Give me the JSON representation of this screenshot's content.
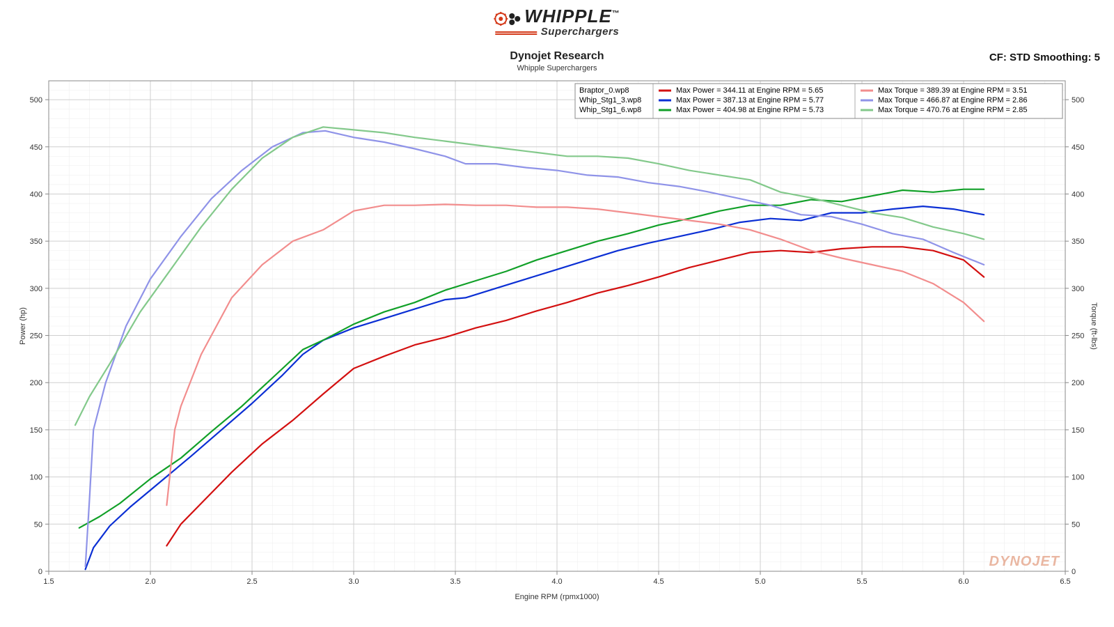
{
  "logo": {
    "brand": "WHIPPLE",
    "subtitle": "Superchargers",
    "tm": "™"
  },
  "header": {
    "title_main": "Dynojet Research",
    "title_sub": "Whipple Superchargers",
    "cf_label": "CF: STD Smoothing: 5"
  },
  "chart": {
    "type": "line",
    "xlabel": "Engine RPM  (rpmx1000)",
    "ylabel_left": "Power (hp)",
    "ylabel_right": "Torque (ft-lbs)",
    "xlim": [
      1.5,
      6.5
    ],
    "ylim": [
      0,
      520
    ],
    "xtick_step": 0.5,
    "ytick_step": 50,
    "ytick_max_label": 500,
    "background_color": "#ffffff",
    "grid_color_major_x": "#cfcfcf",
    "grid_color_major_y": "#cfcfcf",
    "grid_color_minor": "#ececec",
    "axis_color": "#888888",
    "label_fontsize": 11,
    "tick_fontsize": 11,
    "line_width": 2.2,
    "watermark_text": "DYNOJET",
    "legend": {
      "border_color": "#888888",
      "bg": "#ffffff",
      "rows": [
        {
          "file": "Braptor_0.wp8",
          "power_color": "#d31010",
          "power_text": "Max Power = 344.11 at Engine RPM = 5.65",
          "torque_color": "#f28d8d",
          "torque_text": "Max Torque = 389.39 at Engine RPM = 3.51"
        },
        {
          "file": "Whip_Stg1_3.wp8",
          "power_color": "#0b2fd4",
          "power_text": "Max Power = 387.13 at Engine RPM = 5.77",
          "torque_color": "#8f93e8",
          "torque_text": "Max Torque = 466.87 at Engine RPM = 2.86"
        },
        {
          "file": "Whip_Stg1_6.wp8",
          "power_color": "#11a028",
          "power_text": "Max Power = 404.98 at Engine RPM = 5.73",
          "torque_color": "#83c98b",
          "torque_text": "Max Torque = 470.76 at Engine RPM = 2.85"
        }
      ]
    },
    "series": [
      {
        "name": "Braptor_0 Power",
        "color": "#d31010",
        "data": [
          [
            2.08,
            27
          ],
          [
            2.15,
            50
          ],
          [
            2.25,
            72
          ],
          [
            2.4,
            105
          ],
          [
            2.55,
            135
          ],
          [
            2.7,
            160
          ],
          [
            2.85,
            188
          ],
          [
            3.0,
            215
          ],
          [
            3.15,
            228
          ],
          [
            3.3,
            240
          ],
          [
            3.45,
            248
          ],
          [
            3.6,
            258
          ],
          [
            3.75,
            266
          ],
          [
            3.9,
            276
          ],
          [
            4.05,
            285
          ],
          [
            4.2,
            295
          ],
          [
            4.35,
            303
          ],
          [
            4.5,
            312
          ],
          [
            4.65,
            322
          ],
          [
            4.8,
            330
          ],
          [
            4.95,
            338
          ],
          [
            5.1,
            340
          ],
          [
            5.25,
            338
          ],
          [
            5.4,
            342
          ],
          [
            5.55,
            344
          ],
          [
            5.7,
            344
          ],
          [
            5.85,
            340
          ],
          [
            6.0,
            330
          ],
          [
            6.1,
            312
          ]
        ]
      },
      {
        "name": "Whip_Stg1_3 Power",
        "color": "#0b2fd4",
        "data": [
          [
            1.68,
            2
          ],
          [
            1.72,
            25
          ],
          [
            1.8,
            48
          ],
          [
            1.9,
            68
          ],
          [
            2.05,
            95
          ],
          [
            2.2,
            122
          ],
          [
            2.35,
            150
          ],
          [
            2.5,
            178
          ],
          [
            2.65,
            208
          ],
          [
            2.75,
            230
          ],
          [
            2.85,
            245
          ],
          [
            3.0,
            258
          ],
          [
            3.15,
            268
          ],
          [
            3.3,
            278
          ],
          [
            3.45,
            288
          ],
          [
            3.55,
            290
          ],
          [
            3.7,
            300
          ],
          [
            3.85,
            310
          ],
          [
            4.0,
            320
          ],
          [
            4.15,
            330
          ],
          [
            4.3,
            340
          ],
          [
            4.45,
            348
          ],
          [
            4.6,
            355
          ],
          [
            4.75,
            362
          ],
          [
            4.9,
            370
          ],
          [
            5.05,
            374
          ],
          [
            5.2,
            372
          ],
          [
            5.35,
            380
          ],
          [
            5.5,
            380
          ],
          [
            5.65,
            384
          ],
          [
            5.8,
            387
          ],
          [
            5.95,
            384
          ],
          [
            6.1,
            378
          ]
        ]
      },
      {
        "name": "Whip_Stg1_6 Power",
        "color": "#11a028",
        "data": [
          [
            1.65,
            46
          ],
          [
            1.75,
            58
          ],
          [
            1.85,
            72
          ],
          [
            2.0,
            98
          ],
          [
            2.15,
            120
          ],
          [
            2.3,
            148
          ],
          [
            2.45,
            175
          ],
          [
            2.6,
            205
          ],
          [
            2.75,
            235
          ],
          [
            2.85,
            245
          ],
          [
            3.0,
            262
          ],
          [
            3.15,
            275
          ],
          [
            3.3,
            285
          ],
          [
            3.45,
            298
          ],
          [
            3.6,
            308
          ],
          [
            3.75,
            318
          ],
          [
            3.9,
            330
          ],
          [
            4.05,
            340
          ],
          [
            4.2,
            350
          ],
          [
            4.35,
            358
          ],
          [
            4.5,
            367
          ],
          [
            4.65,
            374
          ],
          [
            4.8,
            382
          ],
          [
            4.95,
            388
          ],
          [
            5.1,
            388
          ],
          [
            5.25,
            394
          ],
          [
            5.4,
            392
          ],
          [
            5.55,
            398
          ],
          [
            5.7,
            404
          ],
          [
            5.85,
            402
          ],
          [
            6.0,
            405
          ],
          [
            6.1,
            405
          ]
        ]
      },
      {
        "name": "Braptor_0 Torque",
        "color": "#f28d8d",
        "data": [
          [
            2.08,
            70
          ],
          [
            2.12,
            150
          ],
          [
            2.15,
            175
          ],
          [
            2.25,
            230
          ],
          [
            2.4,
            290
          ],
          [
            2.55,
            325
          ],
          [
            2.7,
            350
          ],
          [
            2.85,
            362
          ],
          [
            3.0,
            382
          ],
          [
            3.15,
            388
          ],
          [
            3.3,
            388
          ],
          [
            3.45,
            389
          ],
          [
            3.6,
            388
          ],
          [
            3.75,
            388
          ],
          [
            3.9,
            386
          ],
          [
            4.05,
            386
          ],
          [
            4.2,
            384
          ],
          [
            4.35,
            380
          ],
          [
            4.5,
            376
          ],
          [
            4.65,
            372
          ],
          [
            4.8,
            368
          ],
          [
            4.95,
            362
          ],
          [
            5.1,
            352
          ],
          [
            5.25,
            340
          ],
          [
            5.4,
            332
          ],
          [
            5.55,
            325
          ],
          [
            5.7,
            318
          ],
          [
            5.85,
            305
          ],
          [
            6.0,
            285
          ],
          [
            6.1,
            265
          ]
        ]
      },
      {
        "name": "Whip_Stg1_3 Torque",
        "color": "#8f93e8",
        "data": [
          [
            1.68,
            5
          ],
          [
            1.7,
            75
          ],
          [
            1.72,
            150
          ],
          [
            1.78,
            200
          ],
          [
            1.88,
            260
          ],
          [
            2.0,
            310
          ],
          [
            2.15,
            355
          ],
          [
            2.3,
            395
          ],
          [
            2.45,
            425
          ],
          [
            2.6,
            450
          ],
          [
            2.75,
            465
          ],
          [
            2.86,
            467
          ],
          [
            3.0,
            460
          ],
          [
            3.15,
            455
          ],
          [
            3.3,
            448
          ],
          [
            3.45,
            440
          ],
          [
            3.55,
            432
          ],
          [
            3.7,
            432
          ],
          [
            3.85,
            428
          ],
          [
            4.0,
            425
          ],
          [
            4.15,
            420
          ],
          [
            4.3,
            418
          ],
          [
            4.45,
            412
          ],
          [
            4.6,
            408
          ],
          [
            4.75,
            402
          ],
          [
            4.9,
            395
          ],
          [
            5.05,
            388
          ],
          [
            5.2,
            378
          ],
          [
            5.35,
            376
          ],
          [
            5.5,
            368
          ],
          [
            5.65,
            358
          ],
          [
            5.8,
            352
          ],
          [
            5.95,
            338
          ],
          [
            6.1,
            325
          ]
        ]
      },
      {
        "name": "Whip_Stg1_6 Torque",
        "color": "#83c98b",
        "data": [
          [
            1.63,
            155
          ],
          [
            1.7,
            185
          ],
          [
            1.8,
            220
          ],
          [
            1.95,
            275
          ],
          [
            2.1,
            320
          ],
          [
            2.25,
            365
          ],
          [
            2.4,
            405
          ],
          [
            2.55,
            438
          ],
          [
            2.7,
            460
          ],
          [
            2.85,
            471
          ],
          [
            3.0,
            468
          ],
          [
            3.15,
            465
          ],
          [
            3.3,
            460
          ],
          [
            3.45,
            456
          ],
          [
            3.6,
            452
          ],
          [
            3.75,
            448
          ],
          [
            3.9,
            444
          ],
          [
            4.05,
            440
          ],
          [
            4.2,
            440
          ],
          [
            4.35,
            438
          ],
          [
            4.5,
            432
          ],
          [
            4.65,
            425
          ],
          [
            4.8,
            420
          ],
          [
            4.95,
            415
          ],
          [
            5.1,
            402
          ],
          [
            5.25,
            396
          ],
          [
            5.4,
            388
          ],
          [
            5.55,
            380
          ],
          [
            5.7,
            375
          ],
          [
            5.85,
            365
          ],
          [
            6.0,
            358
          ],
          [
            6.1,
            352
          ]
        ]
      }
    ]
  }
}
